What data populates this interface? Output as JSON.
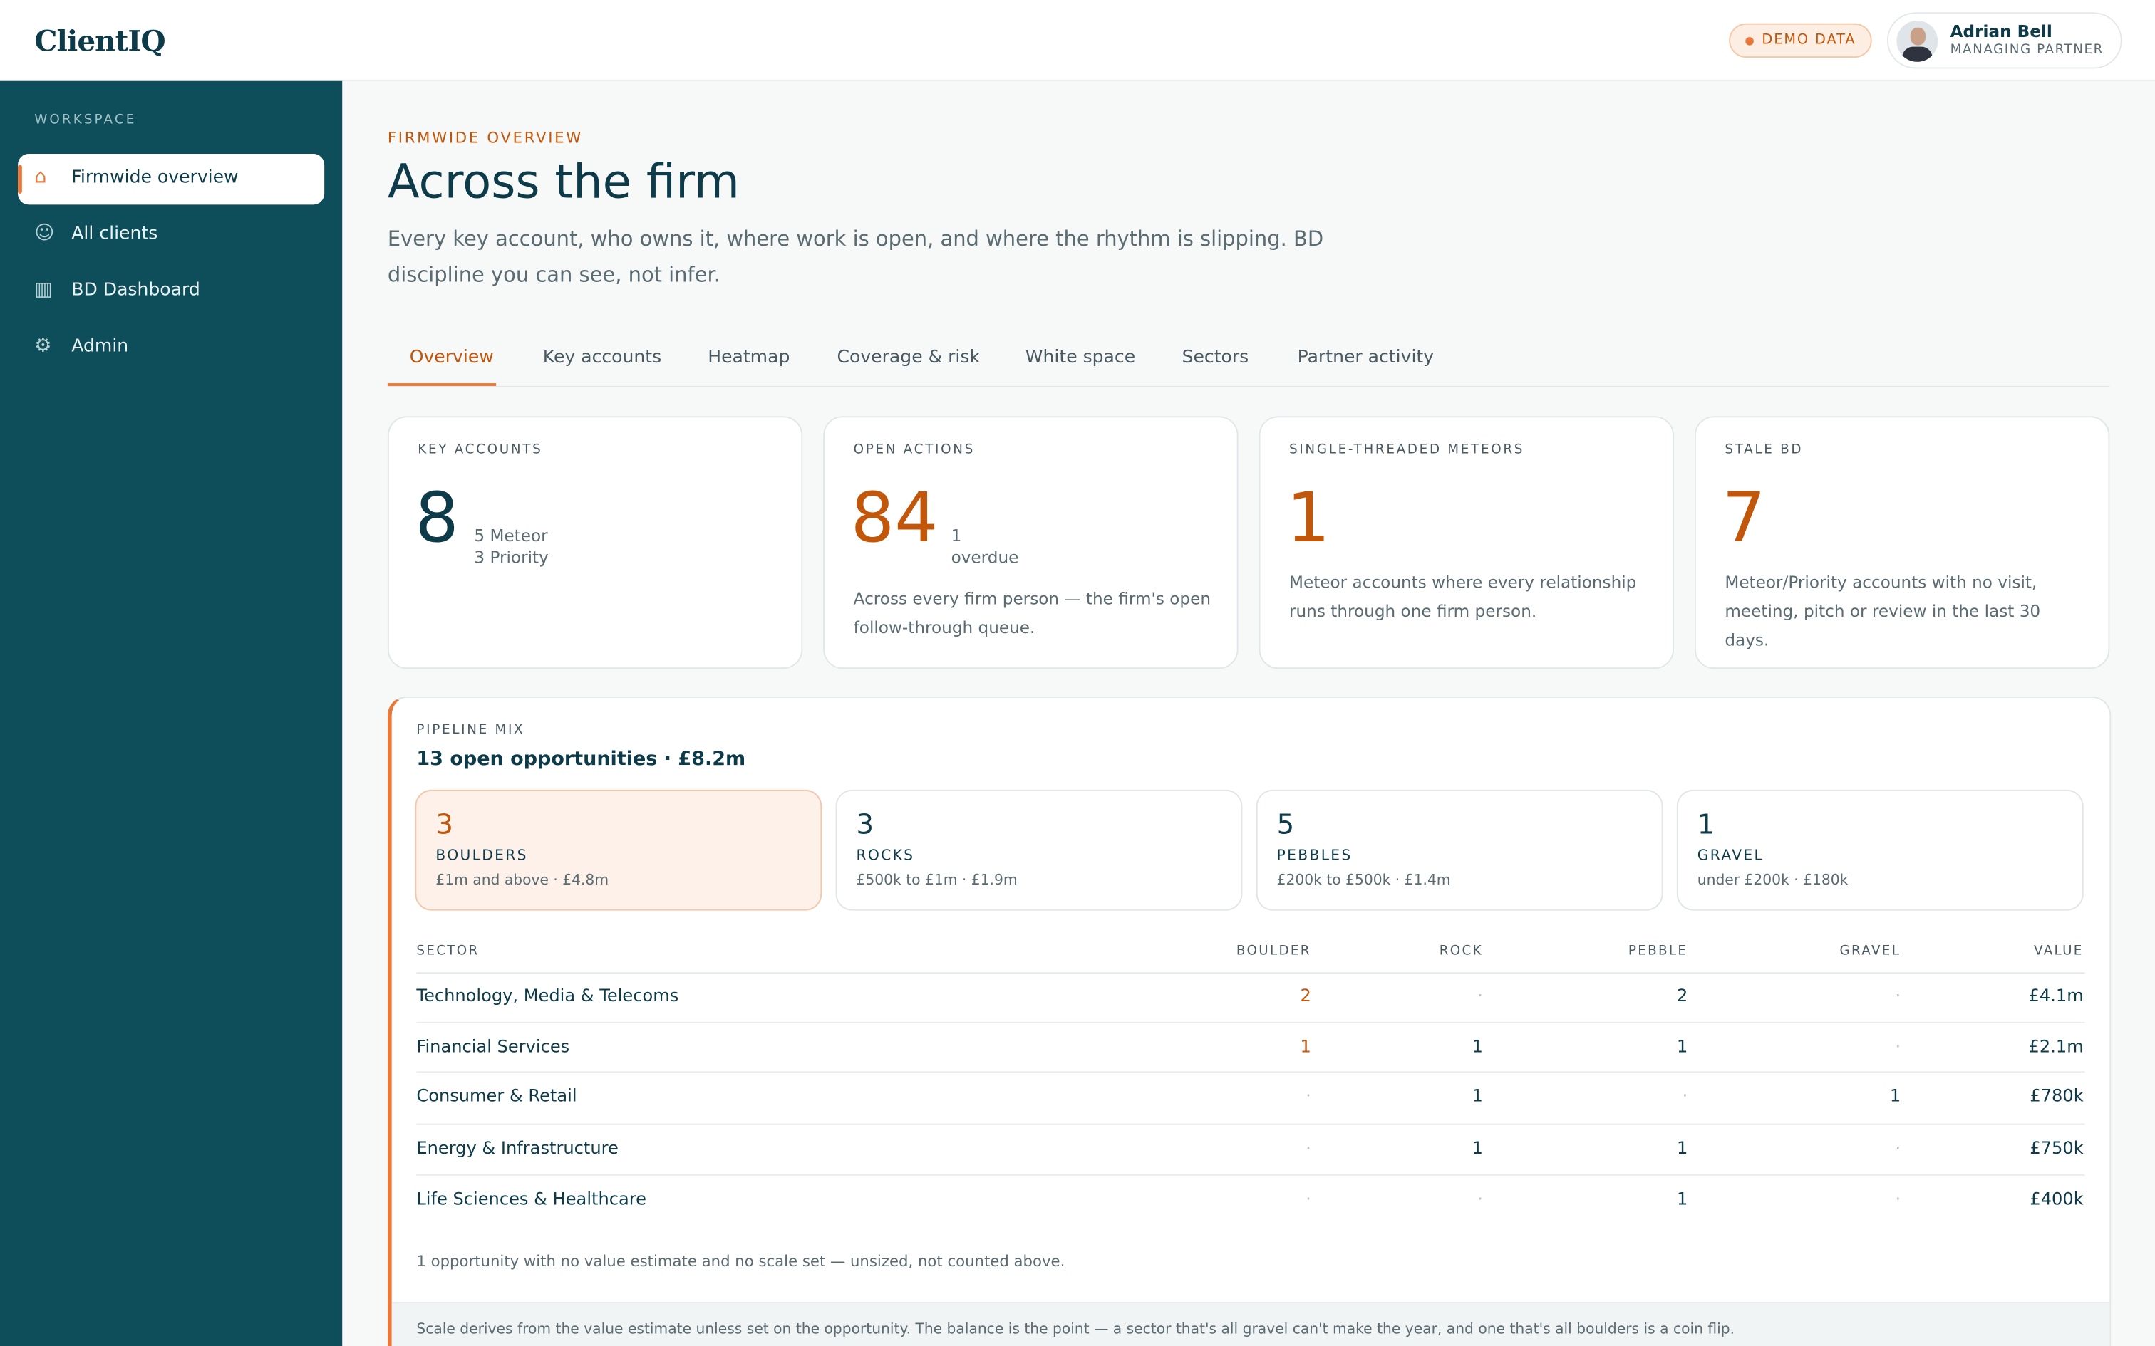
{
  "header": {
    "brand": "ClientIQ",
    "badge": "DEMO DATA",
    "user": {
      "name": "Adrian Bell",
      "role": "MANAGING PARTNER"
    }
  },
  "sidebar": {
    "section": "WORKSPACE",
    "items": [
      "Firmwide overview",
      "All clients",
      "BD Dashboard",
      "Admin"
    ]
  },
  "page": {
    "eyebrow": "FIRMWIDE OVERVIEW",
    "title": "Across the firm",
    "description": "Every key account, who owns it, where work is open, and where the rhythm is slipping. BD discipline you can see, not infer."
  },
  "tabs": [
    "Overview",
    "Key accounts",
    "Heatmap",
    "Coverage & risk",
    "White space",
    "Sectors",
    "Partner activity"
  ],
  "kpis": [
    {
      "label": "KEY ACCOUNTS",
      "value": 8,
      "sub": [
        "5 Meteor",
        "3 Priority"
      ]
    },
    {
      "label": "OPEN ACTIONS",
      "value": 84,
      "sub": [
        "1",
        "overdue"
      ],
      "note": "Across every firm person — the firm's open follow-through queue."
    },
    {
      "label": "SINGLE-THREADED METEORS",
      "value": 1,
      "note": "Meteor accounts where every relationship runs through one firm person."
    },
    {
      "label": "STALE BD",
      "value": 7,
      "note": "Meteor/Priority accounts with no visit, meeting, pitch or review in the last 30 days."
    }
  ],
  "pipeline": {
    "label": "PIPELINE MIX",
    "headline": "13 open opportunities · £8.2m",
    "scales": [
      {
        "count": 3,
        "name": "BOULDERS",
        "range": "£1m and above · £4.8m"
      },
      {
        "count": 3,
        "name": "ROCKS",
        "range": "£500k to £1m · £1.9m"
      },
      {
        "count": 5,
        "name": "PEBBLES",
        "range": "£200k to £500k · £1.4m"
      },
      {
        "count": 1,
        "name": "GRAVEL",
        "range": "under £200k · £180k"
      }
    ],
    "table": {
      "columns": [
        "SECTOR",
        "BOULDER",
        "ROCK",
        "PEBBLE",
        "GRAVEL",
        "VALUE"
      ],
      "rows": [
        [
          "Technology, Media & Telecoms",
          "2",
          "·",
          "2",
          "·",
          "£4.1m"
        ],
        [
          "Financial Services",
          "1",
          "1",
          "1",
          "·",
          "£2.1m"
        ],
        [
          "Consumer & Retail",
          "·",
          "1",
          "·",
          "1",
          "£780k"
        ],
        [
          "Energy & Infrastructure",
          "·",
          "1",
          "1",
          "·",
          "£750k"
        ],
        [
          "Life Sciences & Healthcare",
          "·",
          "·",
          "1",
          "·",
          "£400k"
        ]
      ]
    },
    "footnote": "1 opportunity with no value estimate and no scale set — unsized, not counted above.",
    "note": "Scale derives from the value estimate unless set on the opportunity. The balance is the point — a sector that's all gravel can't make the year, and one that's all boulders is a coin flip."
  }
}
